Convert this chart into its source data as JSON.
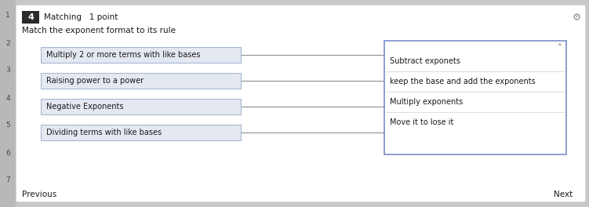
{
  "outer_bg": "#c8c8c8",
  "card_bg": "#f2f2f2",
  "card_border": "#c0c0c0",
  "white": "#ffffff",
  "title_num": "4",
  "title_num_bg": "#2a2a2a",
  "title_text": "Matching   1 point",
  "subtitle": "Match the exponent format to its rule",
  "left_items": [
    "Multiply 2 or more terms with like bases",
    "Raising power to a power",
    "Negative Exponents",
    "Dividing terms with like bases"
  ],
  "right_dropdown_items": [
    "Subtract exponets",
    "keep the base and add the exponents",
    "Multiply exponents",
    "Move it to lose it"
  ],
  "left_box_color": "#e4e8f0",
  "left_box_border": "#a8b8d0",
  "right_box_border": "#7a8fc8",
  "line_color": "#909090",
  "nav_next": "Next",
  "nav_prev": "Previous",
  "font_color": "#1a1a1a",
  "side_nums": [
    "1",
    "2",
    "3",
    "4",
    "5",
    "6",
    "7"
  ],
  "side_bg": "#b8b8b8",
  "caret_color": "#444444",
  "gear_color": "#888888"
}
